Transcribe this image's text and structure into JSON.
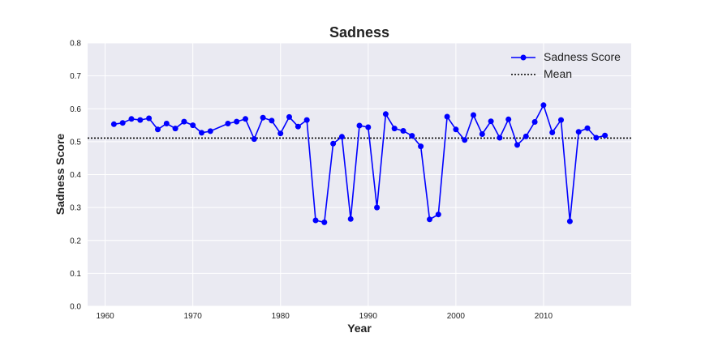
{
  "chart_data": {
    "type": "line",
    "title": "Sadness",
    "xlabel": "Year",
    "ylabel": "Sadness Score",
    "xlim": [
      1958,
      2020
    ],
    "ylim": [
      0.0,
      0.8
    ],
    "xticks": [
      1960,
      1970,
      1980,
      1990,
      2000,
      2010
    ],
    "yticks": [
      0.0,
      0.1,
      0.2,
      0.3,
      0.4,
      0.5,
      0.6,
      0.7,
      0.8
    ],
    "grid": true,
    "legend_position": "top-right",
    "series": [
      {
        "name": "Sadness Score",
        "color": "#0000ff",
        "marker": "circle",
        "x": [
          1961,
          1962,
          1963,
          1964,
          1965,
          1966,
          1967,
          1968,
          1969,
          1970,
          1971,
          1972,
          1974,
          1975,
          1976,
          1977,
          1978,
          1979,
          1980,
          1981,
          1982,
          1983,
          1984,
          1985,
          1986,
          1987,
          1988,
          1989,
          1990,
          1991,
          1992,
          1993,
          1994,
          1995,
          1996,
          1997,
          1998,
          1999,
          2000,
          2001,
          2002,
          2003,
          2004,
          2005,
          2006,
          2007,
          2008,
          2009,
          2010,
          2011,
          2012,
          2013,
          2014,
          2015,
          2016,
          2017
        ],
        "y": [
          0.553,
          0.557,
          0.569,
          0.566,
          0.571,
          0.537,
          0.555,
          0.54,
          0.561,
          0.55,
          0.527,
          0.532,
          0.555,
          0.561,
          0.569,
          0.508,
          0.573,
          0.564,
          0.525,
          0.575,
          0.546,
          0.566,
          0.261,
          0.255,
          0.494,
          0.515,
          0.265,
          0.549,
          0.544,
          0.3,
          0.584,
          0.54,
          0.533,
          0.518,
          0.486,
          0.264,
          0.279,
          0.576,
          0.537,
          0.505,
          0.581,
          0.523,
          0.562,
          0.512,
          0.568,
          0.49,
          0.516,
          0.56,
          0.611,
          0.528,
          0.566,
          0.258,
          0.53,
          0.541,
          0.512,
          0.519
        ]
      }
    ],
    "reference_lines": [
      {
        "name": "Mean",
        "y": 0.511,
        "color": "#000000",
        "style": "dotted"
      }
    ]
  }
}
